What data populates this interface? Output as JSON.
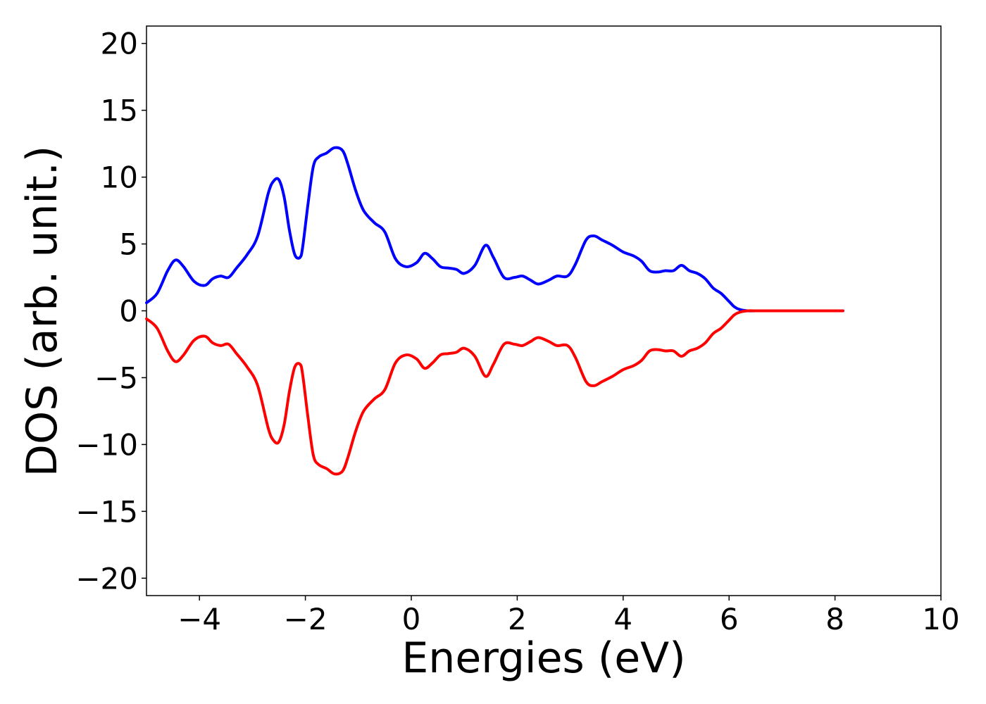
{
  "chart_data": {
    "type": "line",
    "title": "",
    "xlabel": "Energies (eV)",
    "ylabel": "DOS (arb. unit.)",
    "xlim": [
      -5,
      10
    ],
    "ylim": [
      -21.3,
      21.3
    ],
    "x_ticks": [
      -4,
      -2,
      0,
      2,
      4,
      6,
      8,
      10
    ],
    "y_ticks": [
      20,
      15,
      10,
      5,
      0,
      -5,
      -10,
      -15,
      -20
    ],
    "x_tick_labels": [
      "−4",
      "−2",
      "0",
      "2",
      "4",
      "6",
      "8",
      "10"
    ],
    "y_tick_labels": [
      "20",
      "15",
      "10",
      "5",
      "0",
      "−5",
      "−10",
      "−15",
      "−20"
    ],
    "grid": false,
    "legend": "none",
    "series": [
      {
        "color": "#0000ff",
        "x": [
          -5.0,
          -4.8,
          -4.6,
          -4.45,
          -4.3,
          -4.1,
          -3.9,
          -3.75,
          -3.6,
          -3.45,
          -3.3,
          -3.1,
          -2.9,
          -2.7,
          -2.6,
          -2.5,
          -2.4,
          -2.3,
          -2.2,
          -2.1,
          -2.05,
          -1.95,
          -1.85,
          -1.75,
          -1.6,
          -1.45,
          -1.3,
          -1.2,
          -1.05,
          -0.9,
          -0.7,
          -0.5,
          -0.3,
          -0.1,
          0.1,
          0.25,
          0.4,
          0.55,
          0.7,
          0.85,
          1.0,
          1.2,
          1.4,
          1.55,
          1.75,
          1.95,
          2.1,
          2.25,
          2.4,
          2.6,
          2.75,
          2.95,
          3.1,
          3.3,
          3.45,
          3.6,
          3.8,
          4.0,
          4.2,
          4.35,
          4.5,
          4.65,
          4.8,
          4.95,
          5.1,
          5.25,
          5.4,
          5.55,
          5.7,
          5.85,
          6.0,
          6.1,
          6.2,
          6.35,
          6.5,
          7.0,
          7.5,
          8.0,
          8.15
        ],
        "y": [
          0.6,
          1.3,
          3.0,
          3.8,
          3.3,
          2.2,
          1.9,
          2.4,
          2.6,
          2.5,
          3.2,
          4.2,
          5.6,
          8.8,
          9.7,
          9.8,
          8.5,
          6.0,
          4.2,
          4.0,
          4.8,
          8.0,
          10.8,
          11.5,
          11.8,
          12.2,
          12.0,
          11.0,
          9.0,
          7.5,
          6.6,
          5.9,
          3.9,
          3.3,
          3.6,
          4.3,
          3.9,
          3.3,
          3.2,
          3.1,
          2.8,
          3.4,
          4.9,
          4.0,
          2.5,
          2.5,
          2.6,
          2.3,
          2.0,
          2.3,
          2.6,
          2.6,
          3.5,
          5.3,
          5.6,
          5.3,
          4.9,
          4.4,
          4.1,
          3.7,
          3.0,
          2.9,
          3.0,
          3.0,
          3.4,
          3.0,
          2.8,
          2.4,
          1.7,
          1.3,
          0.7,
          0.3,
          0.1,
          0.0,
          0.0,
          0.0,
          0.0,
          0.0,
          0.0
        ]
      },
      {
        "color": "#ff0000",
        "x": [
          -5.0,
          -4.8,
          -4.6,
          -4.45,
          -4.3,
          -4.1,
          -3.9,
          -3.75,
          -3.6,
          -3.45,
          -3.3,
          -3.1,
          -2.9,
          -2.7,
          -2.6,
          -2.5,
          -2.4,
          -2.3,
          -2.2,
          -2.1,
          -2.05,
          -1.95,
          -1.85,
          -1.75,
          -1.6,
          -1.45,
          -1.3,
          -1.2,
          -1.05,
          -0.9,
          -0.7,
          -0.5,
          -0.3,
          -0.1,
          0.1,
          0.25,
          0.4,
          0.55,
          0.7,
          0.85,
          1.0,
          1.2,
          1.4,
          1.55,
          1.75,
          1.95,
          2.1,
          2.25,
          2.4,
          2.6,
          2.75,
          2.95,
          3.1,
          3.3,
          3.45,
          3.6,
          3.8,
          4.0,
          4.2,
          4.35,
          4.5,
          4.65,
          4.8,
          4.95,
          5.1,
          5.25,
          5.4,
          5.55,
          5.7,
          5.85,
          6.0,
          6.1,
          6.2,
          6.35,
          6.5,
          7.0,
          7.5,
          8.0,
          8.15
        ],
        "y": [
          -0.6,
          -1.3,
          -3.0,
          -3.8,
          -3.3,
          -2.2,
          -1.9,
          -2.4,
          -2.6,
          -2.5,
          -3.2,
          -4.2,
          -5.6,
          -8.8,
          -9.7,
          -9.8,
          -8.5,
          -6.0,
          -4.2,
          -4.0,
          -4.8,
          -8.0,
          -10.8,
          -11.5,
          -11.8,
          -12.2,
          -12.0,
          -11.0,
          -9.0,
          -7.5,
          -6.6,
          -5.9,
          -3.9,
          -3.3,
          -3.6,
          -4.3,
          -3.9,
          -3.3,
          -3.2,
          -3.1,
          -2.8,
          -3.4,
          -4.9,
          -4.0,
          -2.5,
          -2.5,
          -2.6,
          -2.3,
          -2.0,
          -2.3,
          -2.6,
          -2.6,
          -3.5,
          -5.3,
          -5.6,
          -5.3,
          -4.9,
          -4.4,
          -4.1,
          -3.7,
          -3.0,
          -2.9,
          -3.0,
          -3.0,
          -3.4,
          -3.0,
          -2.8,
          -2.4,
          -1.7,
          -1.3,
          -0.7,
          -0.3,
          -0.1,
          0.0,
          0.0,
          0.0,
          0.0,
          0.0,
          0.0
        ]
      }
    ]
  }
}
